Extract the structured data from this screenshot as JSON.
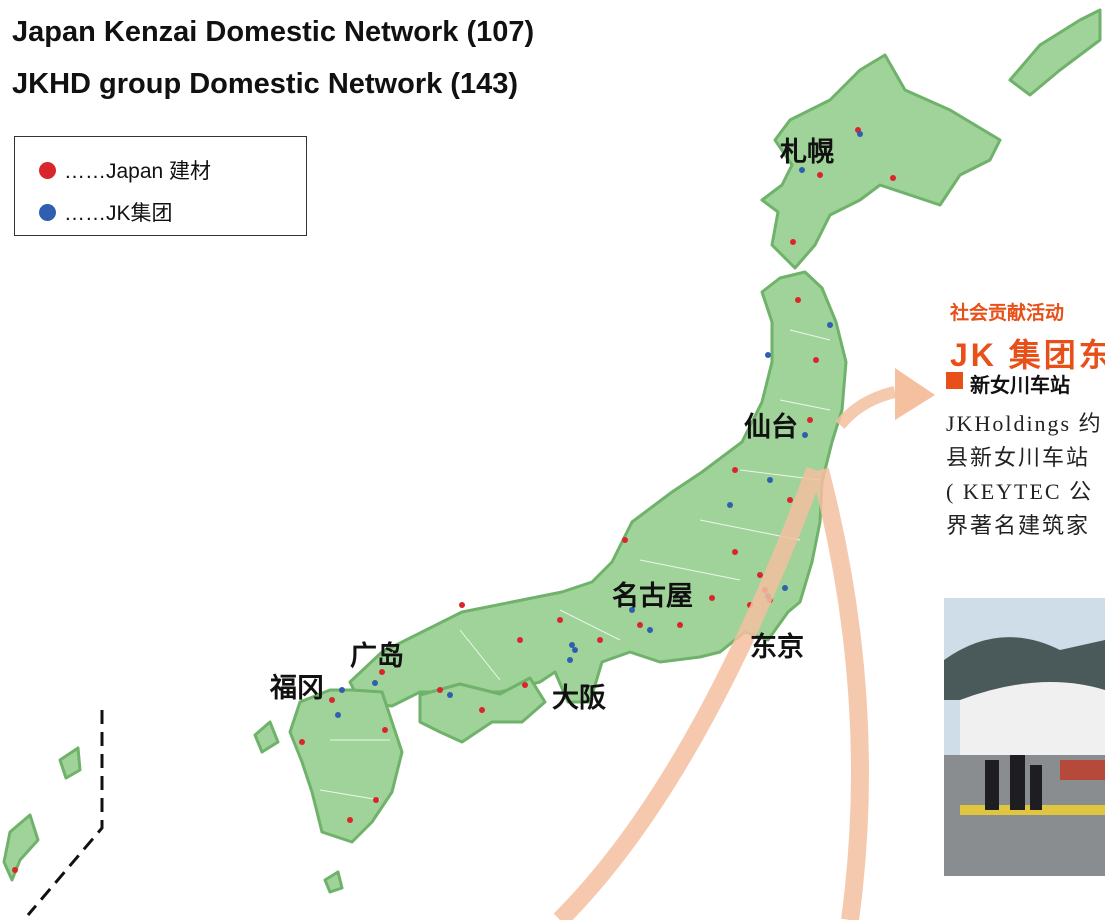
{
  "header": {
    "lines": [
      "Japan Kenzai Domestic Network (107)",
      "JKHD group Domestic Network (143)"
    ]
  },
  "legend": {
    "items": [
      "……Japan 建材",
      "……JK集团"
    ]
  },
  "cities": [
    "札幌",
    "仙台",
    "名古屋",
    "东京",
    "广岛",
    "福冈",
    "大阪"
  ],
  "panel": {
    "category": "社会贡献活动",
    "title": "JK 集团东",
    "section": "新女川车站",
    "lines": [
      "JKHoldings 约",
      "县新女川车站",
      "( KEYTEC 公",
      "界著名建筑家"
    ]
  }
}
